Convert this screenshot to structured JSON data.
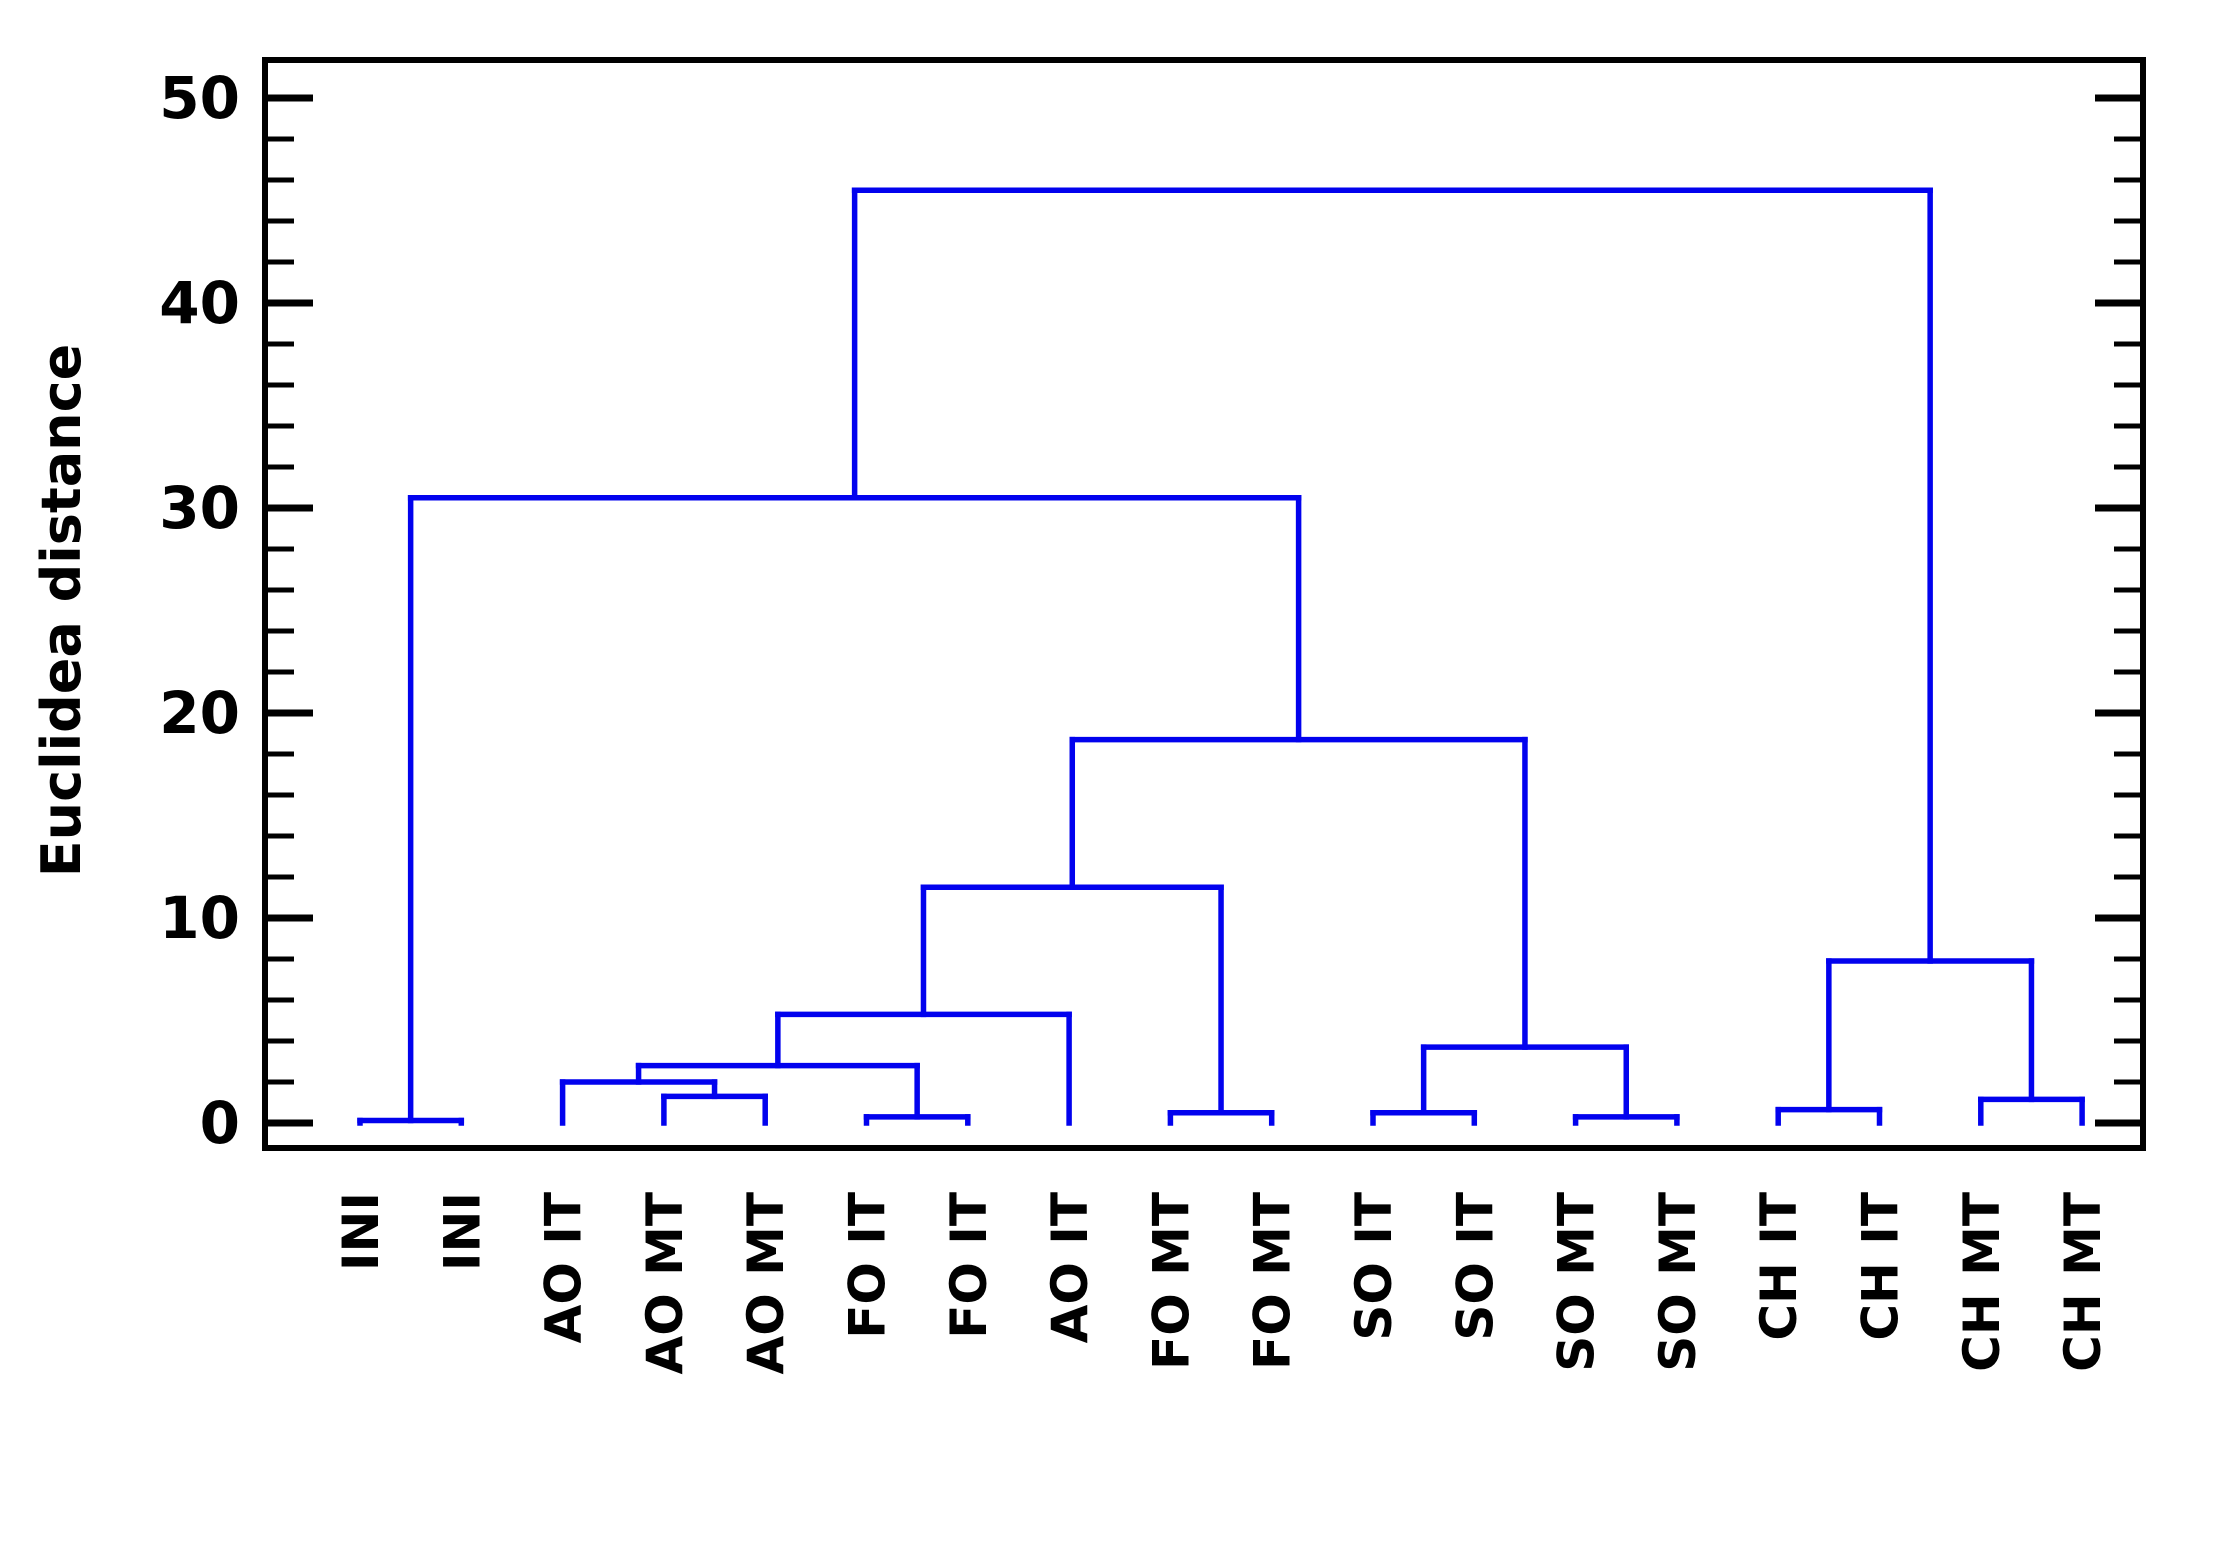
{
  "chart_data": {
    "type": "dendrogram",
    "title": "",
    "ylabel": "Euclidea distance",
    "xlabel": "",
    "ylim": [
      0,
      52.5
    ],
    "yticks_major": [
      0,
      10,
      20,
      30,
      40,
      50
    ],
    "ytick_minor_step": 2,
    "grid": false,
    "legend_position": "none",
    "line_color": "#0202ee",
    "axis_color": "#000000",
    "text_color": "#000000",
    "leaves": [
      "INI",
      "INI",
      "AO IT",
      "AO MT",
      "AO MT",
      "FO IT",
      "FO IT",
      "AO IT",
      "FO MT",
      "FO MT",
      "SO IT",
      "SO IT",
      "SO MT",
      "SO MT",
      "CH IT",
      "CH IT",
      "CH MT",
      "CH MT"
    ],
    "tree": {
      "height": 45.5,
      "children": [
        {
          "height": 30.5,
          "children": [
            {
              "height": 0.12,
              "children": [
                {
                  "leaf": 0
                },
                {
                  "leaf": 1
                }
              ]
            },
            {
              "height": 18.7,
              "children": [
                {
                  "height": 11.5,
                  "children": [
                    {
                      "height": 5.3,
                      "children": [
                        {
                          "height": 2.8,
                          "children": [
                            {
                              "height": 2.0,
                              "children": [
                                {
                                  "leaf": 2
                                },
                                {
                                  "height": 1.3,
                                  "children": [
                                    {
                                      "leaf": 3
                                    },
                                    {
                                      "leaf": 4
                                    }
                                  ]
                                }
                              ]
                            },
                            {
                              "height": 0.3,
                              "children": [
                                {
                                  "leaf": 5
                                },
                                {
                                  "leaf": 6
                                }
                              ]
                            }
                          ]
                        },
                        {
                          "leaf": 7
                        }
                      ]
                    },
                    {
                      "height": 0.5,
                      "children": [
                        {
                          "leaf": 8
                        },
                        {
                          "leaf": 9
                        }
                      ]
                    }
                  ]
                },
                {
                  "height": 3.7,
                  "children": [
                    {
                      "height": 0.5,
                      "children": [
                        {
                          "leaf": 10
                        },
                        {
                          "leaf": 11
                        }
                      ]
                    },
                    {
                      "height": 0.3,
                      "children": [
                        {
                          "leaf": 12
                        },
                        {
                          "leaf": 13
                        }
                      ]
                    }
                  ]
                }
              ]
            }
          ]
        },
        {
          "height": 7.9,
          "children": [
            {
              "height": 0.65,
              "children": [
                {
                  "leaf": 14
                },
                {
                  "leaf": 15
                }
              ]
            },
            {
              "height": 1.15,
              "children": [
                {
                  "leaf": 16
                },
                {
                  "leaf": 17
                }
              ]
            }
          ]
        }
      ]
    }
  }
}
